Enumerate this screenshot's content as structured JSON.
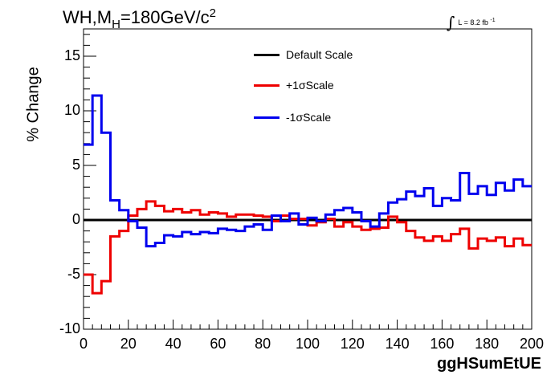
{
  "title": {
    "prefix": "WH,M",
    "sub": "H",
    "mid": "=180GeV/c",
    "sup": "2"
  },
  "lumi": {
    "integral": "∫",
    "text": "L = 8.2 fb",
    "sup": "-1"
  },
  "chart_data": {
    "type": "line",
    "xlabel": "ggHSumEtUE",
    "ylabel": "% Change",
    "xlim": [
      0,
      200
    ],
    "ylim": [
      -10,
      17.5
    ],
    "xticks": [
      0,
      20,
      40,
      60,
      80,
      100,
      120,
      140,
      160,
      180,
      200
    ],
    "yticks": [
      -10,
      -5,
      0,
      5,
      10,
      15
    ],
    "legend_position": "top-center",
    "bin_width": 4,
    "bin_edges_start": 0,
    "series": [
      {
        "name": "Default Scale",
        "color": "#000000",
        "values": [
          0,
          0,
          0,
          0,
          0,
          0,
          0,
          0,
          0,
          0,
          0,
          0,
          0,
          0,
          0,
          0,
          0,
          0,
          0,
          0,
          0,
          0,
          0,
          0,
          0,
          0,
          0,
          0,
          0,
          0,
          0,
          0,
          0,
          0,
          0,
          0,
          0,
          0,
          0,
          0,
          0,
          0,
          0,
          0,
          0,
          0,
          0,
          0,
          0,
          0
        ]
      },
      {
        "name": "+1σScale",
        "color": "#ee0000",
        "values": [
          -5.0,
          -6.7,
          -5.6,
          -1.5,
          -1.0,
          0.4,
          1.0,
          1.7,
          1.3,
          0.8,
          1.0,
          0.7,
          0.9,
          0.5,
          0.7,
          0.6,
          0.3,
          0.5,
          0.5,
          0.4,
          0.3,
          -0.1,
          0.4,
          0.1,
          0.1,
          -0.5,
          -0.2,
          0.1,
          -0.6,
          -0.2,
          -0.6,
          -0.9,
          -0.8,
          -0.7,
          0.3,
          -0.2,
          -1.0,
          -1.6,
          -1.9,
          -1.5,
          -1.9,
          -1.3,
          -0.8,
          -2.6,
          -1.7,
          -1.9,
          -1.6,
          -2.4,
          -1.7,
          -2.3
        ]
      },
      {
        "name": "-1σScale",
        "color": "#0000ee",
        "values": [
          6.9,
          11.4,
          8.0,
          1.8,
          0.9,
          -0.1,
          -0.7,
          -2.4,
          -2.1,
          -1.4,
          -1.5,
          -1.1,
          -1.3,
          -1.1,
          -1.2,
          -0.8,
          -0.9,
          -1.0,
          -0.6,
          -0.4,
          -0.9,
          0.4,
          -0.1,
          0.6,
          -0.4,
          0.2,
          -0.1,
          0.5,
          0.9,
          1.1,
          0.7,
          -0.1,
          -0.6,
          0.6,
          1.6,
          1.9,
          2.6,
          2.2,
          2.9,
          1.3,
          2.0,
          1.8,
          4.3,
          2.4,
          3.1,
          2.3,
          3.4,
          2.7,
          3.7,
          3.1
        ]
      }
    ]
  }
}
